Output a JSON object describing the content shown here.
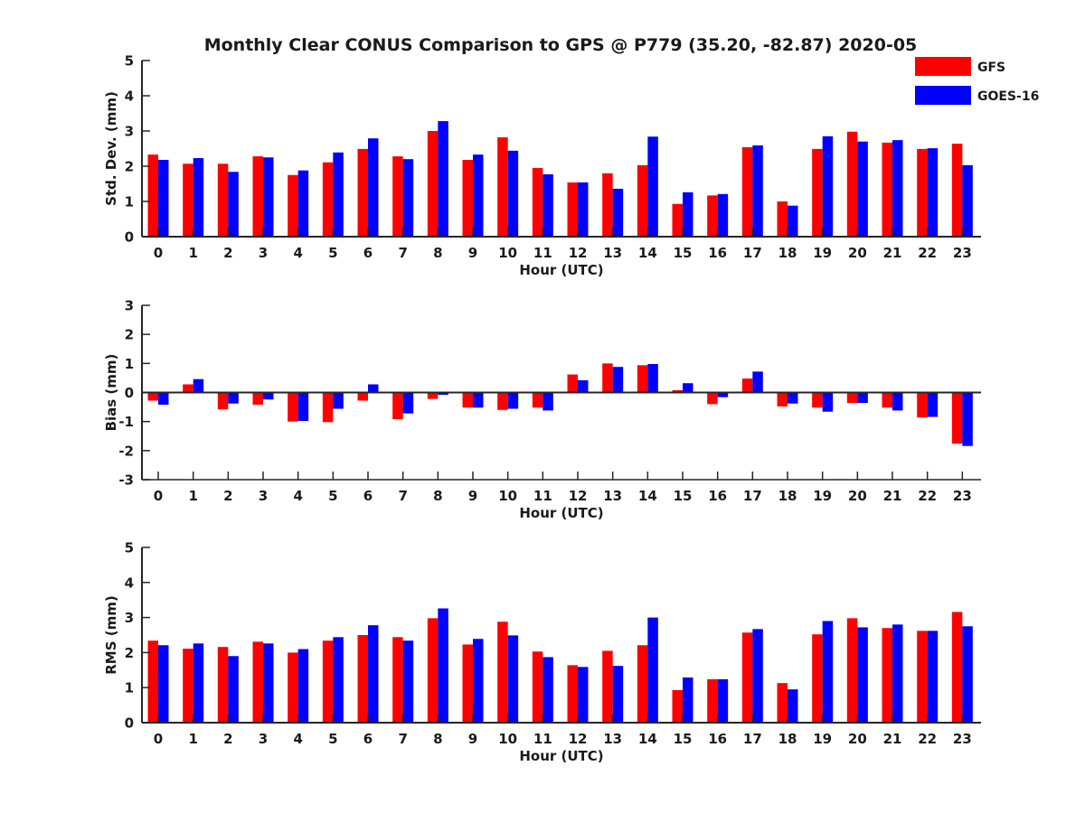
{
  "title": "Monthly Clear CONUS Comparison to GPS @ P779 (35.20, -82.87) 2020-05",
  "legend": {
    "placement": "top-right",
    "entries": [
      {
        "name": "GFS",
        "color": "#ff0000"
      },
      {
        "name": "GOES-16",
        "color": "#0000ff"
      }
    ]
  },
  "chart_data": [
    {
      "type": "bar",
      "categories": [
        "0",
        "1",
        "2",
        "3",
        "4",
        "5",
        "6",
        "7",
        "8",
        "9",
        "10",
        "11",
        "12",
        "13",
        "14",
        "15",
        "16",
        "17",
        "18",
        "19",
        "20",
        "21",
        "22",
        "23"
      ],
      "xlabel": "Hour (UTC)",
      "ylabel": "Std. Dev. (mm)",
      "ylim": [
        0,
        5
      ],
      "yticks": [
        "0",
        "1",
        "2",
        "3",
        "4",
        "5"
      ],
      "grid": false,
      "series": [
        {
          "name": "GFS",
          "color": "#ff0000",
          "values": [
            2.33,
            2.07,
            2.07,
            2.28,
            1.75,
            2.11,
            2.49,
            2.28,
            3.0,
            2.18,
            2.82,
            1.95,
            1.54,
            1.8,
            2.03,
            0.93,
            1.17,
            2.54,
            1.0,
            2.49,
            2.98,
            2.67,
            2.49,
            2.64
          ]
        },
        {
          "name": "GOES-16",
          "color": "#0000ff",
          "values": [
            2.18,
            2.23,
            1.84,
            2.25,
            1.88,
            2.39,
            2.79,
            2.2,
            3.28,
            2.33,
            2.44,
            1.77,
            1.54,
            1.36,
            2.84,
            1.26,
            1.21,
            2.59,
            0.88,
            2.85,
            2.7,
            2.74,
            2.51,
            2.03
          ]
        }
      ]
    },
    {
      "type": "bar",
      "categories": [
        "0",
        "1",
        "2",
        "3",
        "4",
        "5",
        "6",
        "7",
        "8",
        "9",
        "10",
        "11",
        "12",
        "13",
        "14",
        "15",
        "16",
        "17",
        "18",
        "19",
        "20",
        "21",
        "22",
        "23"
      ],
      "xlabel": "Hour (UTC)",
      "ylabel": "Bias (mm)",
      "ylim": [
        -3,
        3
      ],
      "yticks": [
        "-3",
        "-2",
        "-1",
        "0",
        "1",
        "2",
        "3"
      ],
      "grid": false,
      "series": [
        {
          "name": "GFS",
          "color": "#ff0000",
          "values": [
            -0.28,
            0.28,
            -0.58,
            -0.42,
            -1.0,
            -1.02,
            -0.28,
            -0.92,
            -0.22,
            -0.52,
            -0.6,
            -0.52,
            0.62,
            1.0,
            0.94,
            0.08,
            -0.4,
            0.48,
            -0.48,
            -0.52,
            -0.36,
            -0.52,
            -0.86,
            -1.76
          ]
        },
        {
          "name": "GOES-16",
          "color": "#0000ff",
          "values": [
            -0.42,
            0.46,
            -0.38,
            -0.24,
            -0.98,
            -0.56,
            0.28,
            -0.72,
            -0.08,
            -0.52,
            -0.56,
            -0.62,
            0.42,
            0.88,
            0.98,
            0.32,
            -0.16,
            0.72,
            -0.38,
            -0.66,
            -0.36,
            -0.62,
            -0.84,
            -1.84
          ]
        }
      ]
    },
    {
      "type": "bar",
      "categories": [
        "0",
        "1",
        "2",
        "3",
        "4",
        "5",
        "6",
        "7",
        "8",
        "9",
        "10",
        "11",
        "12",
        "13",
        "14",
        "15",
        "16",
        "17",
        "18",
        "19",
        "20",
        "21",
        "22",
        "23"
      ],
      "xlabel": "Hour (UTC)",
      "ylabel": "RMS (mm)",
      "ylim": [
        0,
        5
      ],
      "yticks": [
        "0",
        "1",
        "2",
        "3",
        "4",
        "5"
      ],
      "grid": false,
      "series": [
        {
          "name": "GFS",
          "color": "#ff0000",
          "values": [
            2.34,
            2.11,
            2.16,
            2.31,
            2.0,
            2.34,
            2.5,
            2.44,
            2.98,
            2.23,
            2.88,
            2.03,
            1.64,
            2.05,
            2.21,
            0.93,
            1.24,
            2.57,
            1.13,
            2.52,
            2.98,
            2.7,
            2.62,
            3.16
          ]
        },
        {
          "name": "GOES-16",
          "color": "#0000ff",
          "values": [
            2.21,
            2.26,
            1.9,
            2.26,
            2.1,
            2.44,
            2.78,
            2.34,
            3.26,
            2.39,
            2.49,
            1.87,
            1.59,
            1.62,
            3.0,
            1.29,
            1.24,
            2.67,
            0.95,
            2.9,
            2.72,
            2.8,
            2.62,
            2.75
          ]
        }
      ]
    }
  ]
}
